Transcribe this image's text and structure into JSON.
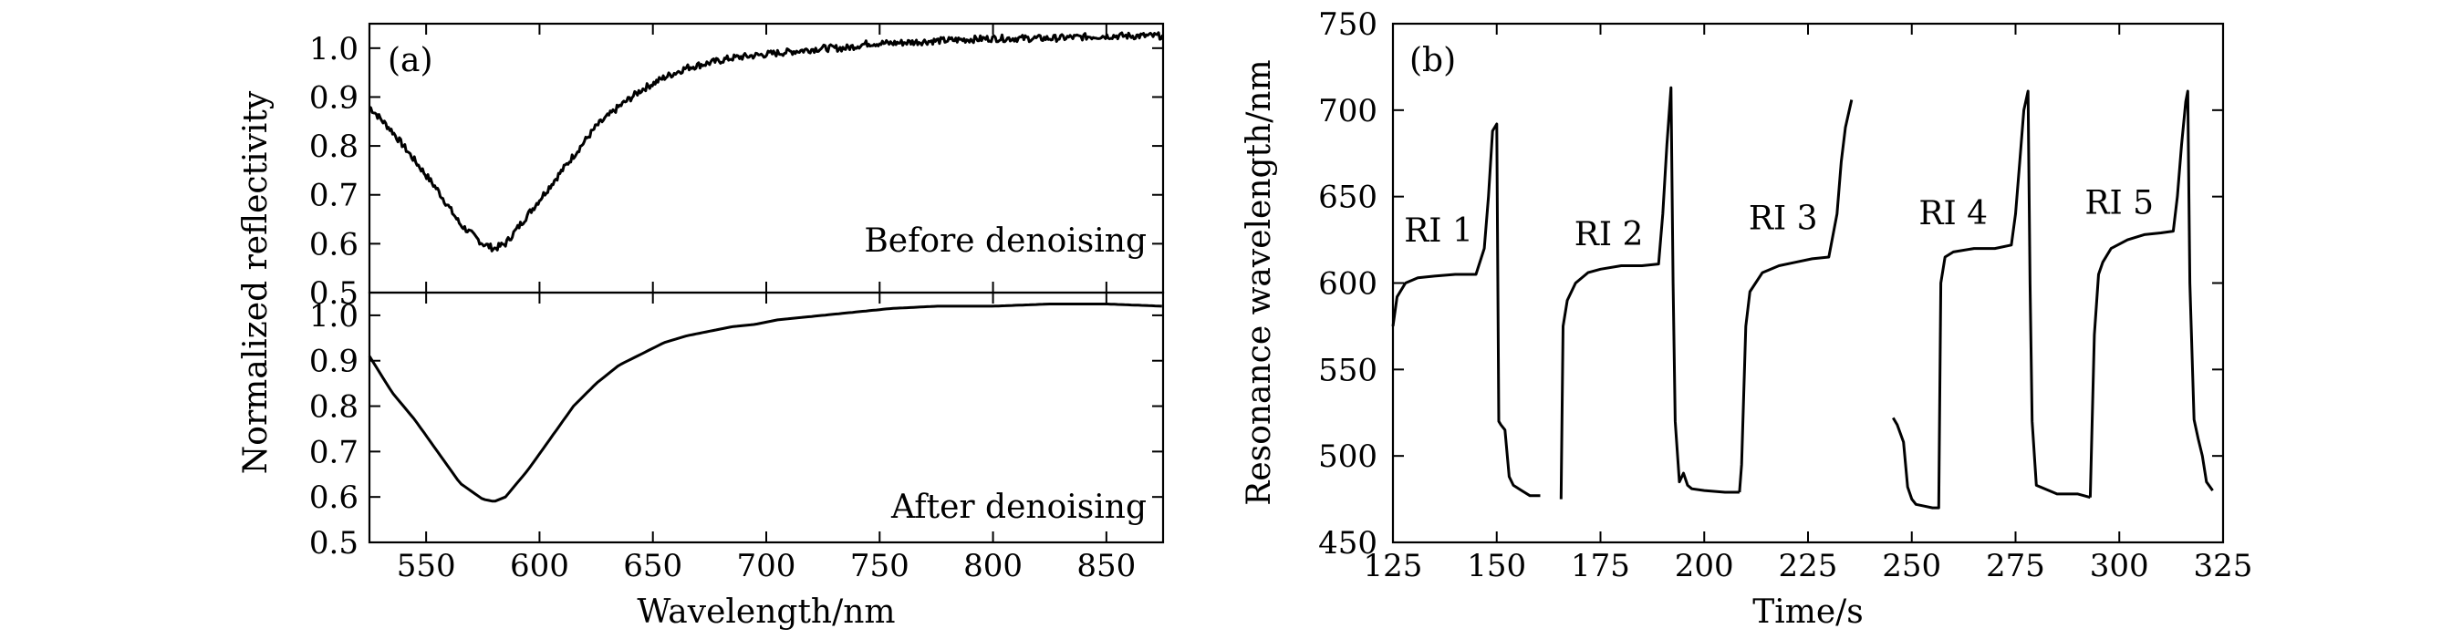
{
  "chart_data": [
    {
      "panel": "(a)",
      "type": "line",
      "xlabel": "Wavelength/nm",
      "ylabel": "Normalized reflectivity",
      "xlim": [
        525,
        875
      ],
      "xticks": [
        550,
        600,
        650,
        700,
        750,
        800,
        850
      ],
      "subplots": [
        {
          "label": "Before denoising",
          "ylim": [
            0.5,
            1.05
          ],
          "yticks": [
            0.5,
            0.6,
            0.7,
            0.8,
            0.9,
            1.0
          ],
          "noisy": true,
          "x": [
            525,
            535,
            545,
            555,
            565,
            575,
            580,
            585,
            595,
            605,
            615,
            625,
            635,
            645,
            655,
            665,
            675,
            685,
            695,
            705,
            715,
            725,
            735,
            745,
            755,
            775,
            800,
            825,
            850,
            875
          ],
          "y": [
            0.88,
            0.83,
            0.77,
            0.71,
            0.64,
            0.6,
            0.59,
            0.6,
            0.66,
            0.72,
            0.78,
            0.84,
            0.88,
            0.915,
            0.94,
            0.96,
            0.97,
            0.98,
            0.985,
            0.99,
            0.995,
            1.0,
            1.0,
            1.01,
            1.01,
            1.015,
            1.02,
            1.02,
            1.025,
            1.025
          ]
        },
        {
          "label": "After denoising",
          "ylim": [
            0.5,
            1.05
          ],
          "yticks": [
            0.5,
            0.6,
            0.7,
            0.8,
            0.9,
            1.0
          ],
          "noisy": false,
          "x": [
            525,
            535,
            545,
            555,
            565,
            575,
            580,
            585,
            595,
            605,
            615,
            625,
            635,
            645,
            655,
            665,
            675,
            685,
            695,
            705,
            715,
            725,
            735,
            745,
            755,
            775,
            800,
            825,
            850,
            875
          ],
          "y": [
            0.91,
            0.83,
            0.77,
            0.7,
            0.63,
            0.595,
            0.59,
            0.6,
            0.66,
            0.73,
            0.8,
            0.85,
            0.89,
            0.915,
            0.94,
            0.955,
            0.965,
            0.975,
            0.98,
            0.99,
            0.995,
            1.0,
            1.005,
            1.01,
            1.015,
            1.02,
            1.02,
            1.025,
            1.025,
            1.02
          ]
        }
      ]
    },
    {
      "panel": "(b)",
      "type": "line",
      "xlabel": "Time/s",
      "ylabel": "Resonance wavelength/nm",
      "xlim": [
        125,
        325
      ],
      "ylim": [
        450,
        750
      ],
      "xticks": [
        125,
        150,
        175,
        200,
        225,
        250,
        275,
        300,
        325
      ],
      "yticks": [
        450,
        500,
        550,
        600,
        650,
        700,
        750
      ],
      "annotations": [
        {
          "text": "RI 1",
          "x": 136,
          "y": 624
        },
        {
          "text": "RI 2",
          "x": 177,
          "y": 622
        },
        {
          "text": "RI 3",
          "x": 219,
          "y": 631
        },
        {
          "text": "RI 4",
          "x": 260,
          "y": 634
        },
        {
          "text": "RI 5",
          "x": 300,
          "y": 640
        }
      ],
      "segments": [
        {
          "x": [
            125,
            126,
            128,
            131,
            135,
            140,
            145,
            147,
            148,
            149,
            150,
            150.5,
            151,
            152,
            153,
            154,
            156,
            158,
            160.5
          ],
          "y": [
            575,
            592,
            600,
            603,
            604,
            605,
            605,
            620,
            650,
            688,
            692,
            520,
            518,
            515,
            488,
            483,
            480,
            477,
            477
          ]
        },
        {
          "x": [
            165.5,
            166,
            167,
            169,
            172,
            175,
            180,
            185,
            189,
            190,
            191,
            192,
            192.5,
            193,
            194,
            195,
            196,
            197,
            200,
            205,
            208.5
          ],
          "y": [
            475,
            575,
            590,
            600,
            606,
            608,
            610,
            610,
            611,
            640,
            680,
            713,
            600,
            520,
            485,
            490,
            483,
            481,
            480,
            479,
            479
          ]
        },
        {
          "x": [
            208.5,
            209,
            210,
            211,
            214,
            218,
            222,
            226,
            230,
            232,
            233,
            234,
            235.5
          ],
          "y": [
            479,
            495,
            575,
            595,
            606,
            610,
            612,
            614,
            615,
            640,
            670,
            690,
            706
          ]
        },
        {
          "x": [
            245.5,
            246.5,
            248,
            249,
            250,
            251,
            253,
            255,
            256.5,
            257,
            258,
            260,
            265,
            270,
            274,
            275,
            276,
            277,
            278,
            278.5,
            279,
            280,
            285,
            290,
            293
          ],
          "y": [
            522,
            518,
            508,
            482,
            475,
            472,
            471,
            470,
            470,
            600,
            615,
            618,
            620,
            620,
            622,
            640,
            670,
            700,
            711,
            600,
            520,
            483,
            478,
            478,
            476
          ]
        },
        {
          "x": [
            293,
            294,
            295,
            296,
            298,
            302,
            306,
            310,
            313,
            314,
            315,
            316,
            316.5,
            317,
            318,
            319,
            320,
            321,
            322.5
          ],
          "y": [
            476,
            570,
            605,
            612,
            620,
            625,
            628,
            629,
            630,
            650,
            680,
            705,
            711,
            600,
            521,
            510,
            500,
            485,
            480
          ]
        }
      ]
    }
  ]
}
